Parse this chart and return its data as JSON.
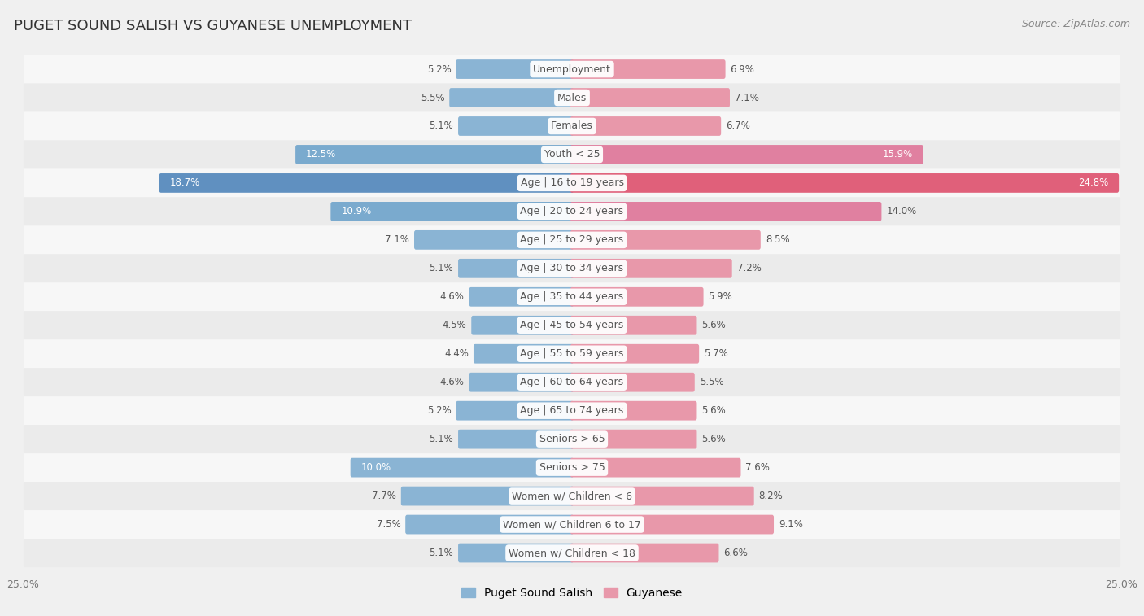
{
  "title": "PUGET SOUND SALISH VS GUYANESE UNEMPLOYMENT",
  "source": "Source: ZipAtlas.com",
  "categories": [
    "Unemployment",
    "Males",
    "Females",
    "Youth < 25",
    "Age | 16 to 19 years",
    "Age | 20 to 24 years",
    "Age | 25 to 29 years",
    "Age | 30 to 34 years",
    "Age | 35 to 44 years",
    "Age | 45 to 54 years",
    "Age | 55 to 59 years",
    "Age | 60 to 64 years",
    "Age | 65 to 74 years",
    "Seniors > 65",
    "Seniors > 75",
    "Women w/ Children < 6",
    "Women w/ Children 6 to 17",
    "Women w/ Children < 18"
  ],
  "puget_values": [
    5.2,
    5.5,
    5.1,
    12.5,
    18.7,
    10.9,
    7.1,
    5.1,
    4.6,
    4.5,
    4.4,
    4.6,
    5.2,
    5.1,
    10.0,
    7.7,
    7.5,
    5.1
  ],
  "guyanese_values": [
    6.9,
    7.1,
    6.7,
    15.9,
    24.8,
    14.0,
    8.5,
    7.2,
    5.9,
    5.6,
    5.7,
    5.5,
    5.6,
    5.6,
    7.6,
    8.2,
    9.1,
    6.6
  ],
  "puget_color": "#8ab4d4",
  "guyanese_color": "#e898aa",
  "puget_highlight_color": "#6090c0",
  "guyanese_highlight_color": "#e0607a",
  "xlim": 25.0,
  "row_odd_color": "#f5f5f5",
  "row_even_color": "#e8e8e8",
  "background_color": "#f0f0f0",
  "title_fontsize": 13,
  "label_fontsize": 9,
  "value_fontsize": 8.5,
  "legend_fontsize": 10,
  "source_fontsize": 9
}
